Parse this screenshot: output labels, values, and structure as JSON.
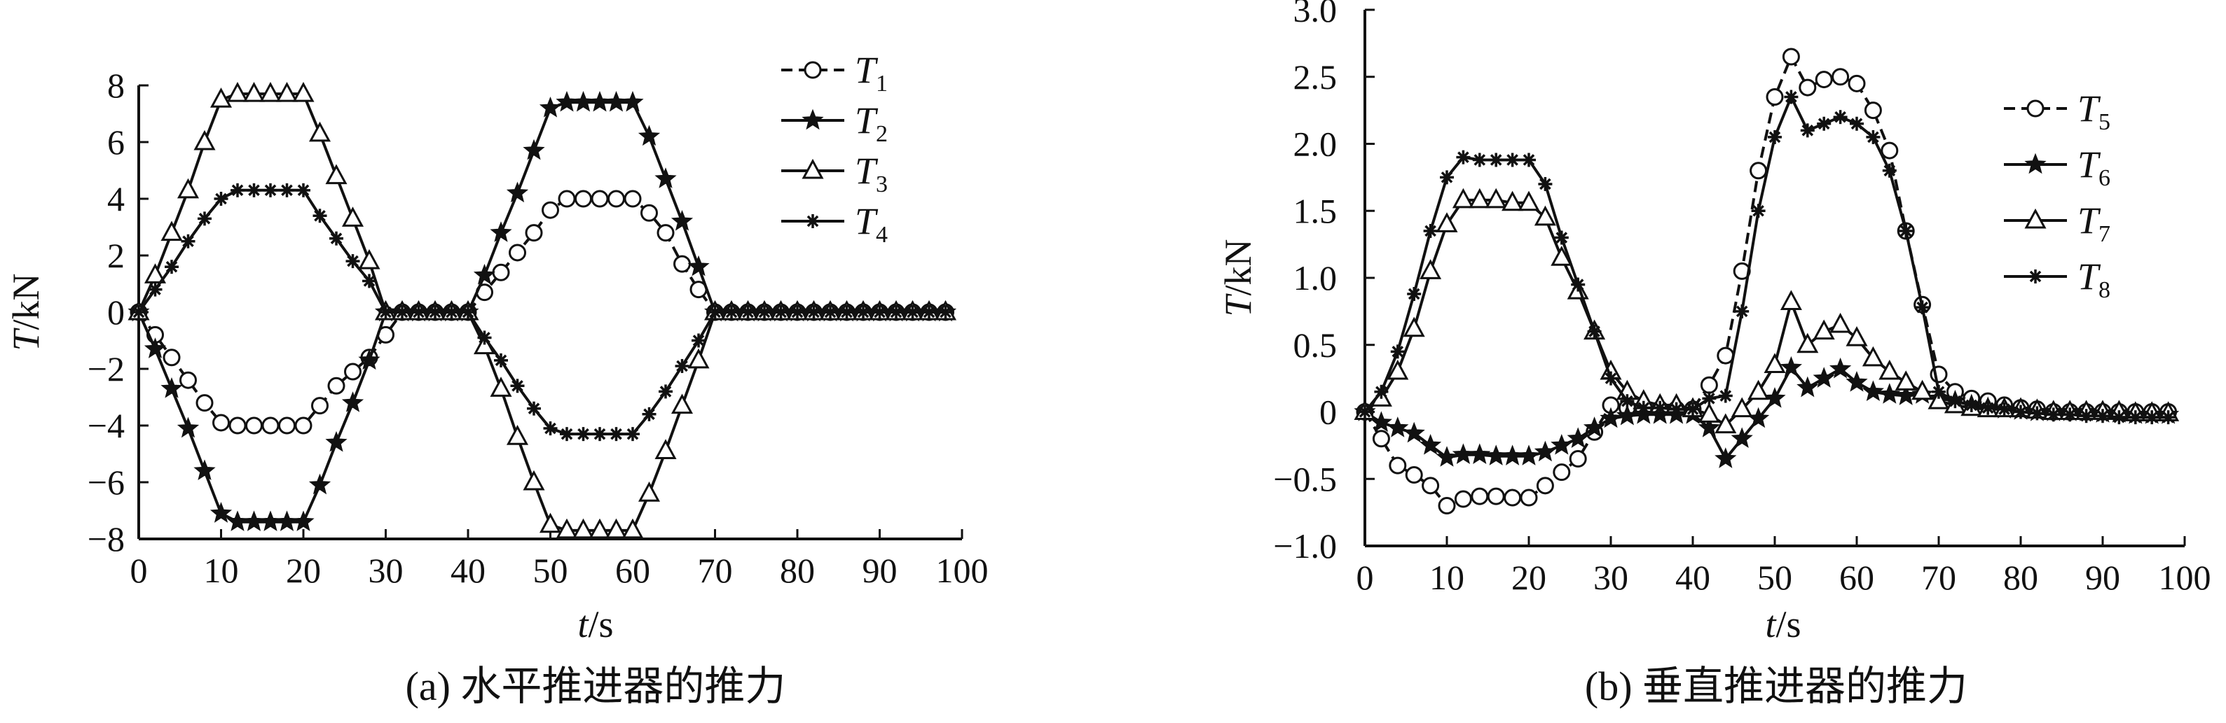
{
  "chart_data": [
    {
      "type": "line",
      "caption": "(a) 水平推进器的推力",
      "xlabel_var": "t",
      "xlabel_unit": "/s",
      "ylabel_var": "T",
      "ylabel_unit": "/kN",
      "xlim": [
        0,
        100
      ],
      "ylim": [
        -8,
        8
      ],
      "xticks": [
        0,
        10,
        20,
        30,
        40,
        50,
        60,
        70,
        80,
        90,
        100
      ],
      "yticks": [
        8,
        6,
        4,
        2,
        0,
        -2,
        -4,
        -6,
        -8
      ],
      "ytick_labels": [
        "8",
        "6",
        "4",
        "2",
        "0",
        "−2",
        "−4",
        "−6",
        "−8"
      ],
      "grid": false,
      "legend_position": "top-right",
      "x": [
        0,
        2,
        4,
        6,
        8,
        10,
        12,
        14,
        16,
        18,
        20,
        22,
        24,
        26,
        28,
        30,
        32,
        34,
        36,
        38,
        40,
        42,
        44,
        46,
        48,
        50,
        52,
        54,
        56,
        58,
        60,
        62,
        64,
        66,
        68,
        70,
        72,
        74,
        76,
        78,
        80,
        82,
        84,
        86,
        88,
        90,
        92,
        94,
        96,
        98
      ],
      "series": [
        {
          "name": "T",
          "sub": "1",
          "marker": "circle",
          "dash": true,
          "values": [
            0,
            -0.8,
            -1.6,
            -2.4,
            -3.2,
            -3.9,
            -4,
            -4,
            -4,
            -4,
            -4,
            -3.3,
            -2.6,
            -2.1,
            -1.6,
            -0.8,
            0,
            0,
            0,
            0,
            0,
            0.7,
            1.4,
            2.1,
            2.8,
            3.6,
            4,
            4,
            4,
            4,
            4,
            3.5,
            2.8,
            1.7,
            0.8,
            0,
            0,
            0,
            0,
            0,
            0,
            0,
            0,
            0,
            0,
            0,
            0,
            0,
            0,
            0
          ]
        },
        {
          "name": "T",
          "sub": "2",
          "marker": "star",
          "dash": false,
          "values": [
            0,
            -1.3,
            -2.7,
            -4.1,
            -5.6,
            -7.1,
            -7.4,
            -7.4,
            -7.4,
            -7.4,
            -7.4,
            -6.1,
            -4.6,
            -3.2,
            -1.7,
            0,
            0,
            0,
            0,
            0,
            0,
            1.3,
            2.8,
            4.2,
            5.7,
            7.2,
            7.4,
            7.4,
            7.4,
            7.4,
            7.4,
            6.2,
            4.7,
            3.2,
            1.6,
            0,
            0,
            0,
            0,
            0,
            0,
            0,
            0,
            0,
            0,
            0,
            0,
            0,
            0,
            0
          ]
        },
        {
          "name": "T",
          "sub": "3",
          "marker": "triangle",
          "dash": false,
          "values": [
            0,
            1.3,
            2.8,
            4.3,
            6,
            7.5,
            7.7,
            7.7,
            7.7,
            7.7,
            7.7,
            6.3,
            4.8,
            3.3,
            1.8,
            0,
            0,
            0,
            0,
            0,
            0,
            -1.2,
            -2.7,
            -4.4,
            -6,
            -7.5,
            -7.7,
            -7.7,
            -7.7,
            -7.7,
            -7.7,
            -6.4,
            -4.9,
            -3.3,
            -1.7,
            0,
            0,
            0,
            0,
            0,
            0,
            0,
            0,
            0,
            0,
            0,
            0,
            0,
            0,
            0
          ]
        },
        {
          "name": "T",
          "sub": "4",
          "marker": "asterisk",
          "dash": false,
          "values": [
            0,
            0.8,
            1.6,
            2.5,
            3.3,
            4,
            4.3,
            4.3,
            4.3,
            4.3,
            4.3,
            3.4,
            2.6,
            1.8,
            1.1,
            0,
            0,
            0,
            0,
            0,
            0,
            -0.9,
            -1.7,
            -2.6,
            -3.4,
            -4.1,
            -4.3,
            -4.3,
            -4.3,
            -4.3,
            -4.3,
            -3.6,
            -2.8,
            -1.9,
            -1,
            0,
            0,
            0,
            0,
            0,
            0,
            0,
            0,
            0,
            0,
            0,
            0,
            0,
            0,
            0
          ]
        }
      ]
    },
    {
      "type": "line",
      "caption": "(b) 垂直推进器的推力",
      "xlabel_var": "t",
      "xlabel_unit": "/s",
      "ylabel_var": "T",
      "ylabel_unit": "/kN",
      "xlim": [
        0,
        100
      ],
      "ylim": [
        -1,
        3
      ],
      "xticks": [
        0,
        10,
        20,
        30,
        40,
        50,
        60,
        70,
        80,
        90,
        100
      ],
      "yticks": [
        3,
        2.5,
        2,
        1.5,
        1,
        0.5,
        0,
        -0.5,
        -1
      ],
      "ytick_labels": [
        "3.0",
        "2.5",
        "2.0",
        "1.5",
        "1.0",
        "0.5",
        "0",
        "−0.5",
        "−1.0"
      ],
      "grid": false,
      "legend_position": "top-right",
      "x": [
        0,
        2,
        4,
        6,
        8,
        10,
        12,
        14,
        16,
        18,
        20,
        22,
        24,
        26,
        28,
        30,
        32,
        34,
        36,
        38,
        40,
        42,
        44,
        46,
        48,
        50,
        52,
        54,
        56,
        58,
        60,
        62,
        64,
        66,
        68,
        70,
        72,
        74,
        76,
        78,
        80,
        82,
        84,
        86,
        88,
        90,
        92,
        94,
        96,
        98
      ],
      "series": [
        {
          "name": "T",
          "sub": "5",
          "marker": "circle",
          "dash": true,
          "values": [
            0,
            -0.2,
            -0.4,
            -0.47,
            -0.55,
            -0.7,
            -0.65,
            -0.63,
            -0.63,
            -0.64,
            -0.64,
            -0.55,
            -0.45,
            -0.35,
            -0.15,
            0.05,
            0.03,
            0.02,
            0.02,
            0.02,
            0.02,
            0.2,
            0.42,
            1.05,
            1.8,
            2.35,
            2.65,
            2.42,
            2.48,
            2.5,
            2.45,
            2.25,
            1.95,
            1.35,
            0.8,
            0.28,
            0.15,
            0.1,
            0.08,
            0.05,
            0.03,
            0.02,
            0,
            0,
            0,
            0,
            0,
            0,
            0,
            0
          ]
        },
        {
          "name": "T",
          "sub": "6",
          "marker": "star",
          "dash": false,
          "values": [
            0,
            -0.08,
            -0.12,
            -0.16,
            -0.25,
            -0.34,
            -0.32,
            -0.32,
            -0.33,
            -0.33,
            -0.33,
            -0.3,
            -0.25,
            -0.2,
            -0.12,
            -0.05,
            -0.03,
            -0.02,
            -0.02,
            -0.02,
            -0.02,
            -0.12,
            -0.35,
            -0.2,
            -0.05,
            0.1,
            0.33,
            0.18,
            0.25,
            0.32,
            0.22,
            0.15,
            0.13,
            0.12,
            0.13,
            0.1,
            0.08,
            0.05,
            0.03,
            0.02,
            0.01,
            0,
            0,
            0,
            0,
            -0.01,
            -0.01,
            -0.02,
            -0.02,
            -0.02
          ]
        },
        {
          "name": "T",
          "sub": "7",
          "marker": "triangle",
          "dash": false,
          "values": [
            0,
            0.1,
            0.3,
            0.62,
            1.05,
            1.4,
            1.58,
            1.58,
            1.58,
            1.56,
            1.56,
            1.45,
            1.15,
            0.9,
            0.6,
            0.3,
            0.15,
            0.08,
            0.05,
            0.05,
            0.02,
            -0.02,
            -0.1,
            0.02,
            0.15,
            0.35,
            0.82,
            0.5,
            0.6,
            0.65,
            0.55,
            0.4,
            0.3,
            0.22,
            0.15,
            0.08,
            0.05,
            0.03,
            0.02,
            0.02,
            0.02,
            0.01,
            0,
            0,
            0,
            0,
            0,
            -0.01,
            -0.01,
            -0.01
          ]
        },
        {
          "name": "T",
          "sub": "8",
          "marker": "asterisk",
          "dash": false,
          "values": [
            0,
            0.15,
            0.45,
            0.88,
            1.35,
            1.75,
            1.9,
            1.88,
            1.88,
            1.88,
            1.88,
            1.7,
            1.3,
            0.95,
            0.6,
            0.25,
            0.08,
            0.03,
            0.03,
            0.02,
            0.02,
            0.1,
            0.12,
            0.75,
            1.5,
            2.05,
            2.35,
            2.1,
            2.15,
            2.2,
            2.15,
            2.05,
            1.8,
            1.35,
            0.78,
            0.15,
            0.08,
            0.05,
            0.03,
            0.02,
            0,
            -0.01,
            -0.02,
            -0.02,
            -0.03,
            -0.03,
            -0.04,
            -0.04,
            -0.04,
            -0.04
          ]
        }
      ]
    }
  ]
}
